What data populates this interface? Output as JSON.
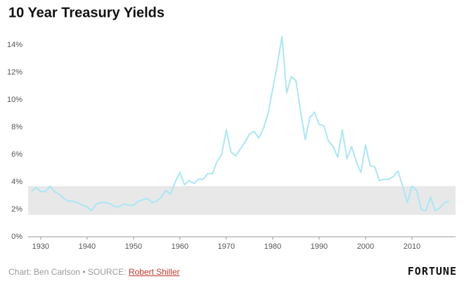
{
  "chart_data": {
    "type": "line",
    "title": "10 Year Treasury Yields",
    "x": [
      1928,
      1929,
      1930,
      1931,
      1932,
      1933,
      1934,
      1935,
      1936,
      1937,
      1938,
      1939,
      1940,
      1941,
      1942,
      1943,
      1944,
      1945,
      1946,
      1947,
      1948,
      1949,
      1950,
      1951,
      1952,
      1953,
      1954,
      1955,
      1956,
      1957,
      1958,
      1959,
      1960,
      1961,
      1962,
      1963,
      1964,
      1965,
      1966,
      1967,
      1968,
      1969,
      1970,
      1971,
      1972,
      1973,
      1974,
      1975,
      1976,
      1977,
      1978,
      1979,
      1980,
      1981,
      1982,
      1983,
      1984,
      1985,
      1986,
      1987,
      1988,
      1989,
      1990,
      1991,
      1992,
      1993,
      1994,
      1995,
      1996,
      1997,
      1998,
      1999,
      2000,
      2001,
      2002,
      2003,
      2004,
      2005,
      2006,
      2007,
      2008,
      2009,
      2010,
      2011,
      2012,
      2013,
      2014,
      2015,
      2016,
      2017,
      2018
    ],
    "series": [
      {
        "name": "10 Year Treasury Yield",
        "color": "#a9e7f6",
        "values": [
          3.3,
          3.6,
          3.3,
          3.3,
          3.7,
          3.3,
          3.1,
          2.8,
          2.6,
          2.6,
          2.5,
          2.3,
          2.2,
          1.9,
          2.4,
          2.5,
          2.5,
          2.4,
          2.2,
          2.2,
          2.4,
          2.3,
          2.3,
          2.6,
          2.7,
          2.8,
          2.5,
          2.6,
          2.9,
          3.4,
          3.1,
          4.0,
          4.7,
          3.8,
          4.1,
          3.9,
          4.2,
          4.2,
          4.6,
          4.6,
          5.5,
          6.0,
          7.8,
          6.2,
          5.9,
          6.4,
          6.9,
          7.5,
          7.7,
          7.2,
          7.9,
          9.0,
          10.8,
          12.6,
          14.6,
          10.5,
          11.7,
          11.4,
          9.2,
          7.1,
          8.7,
          9.1,
          8.2,
          8.1,
          7.0,
          6.6,
          5.8,
          7.8,
          5.7,
          6.6,
          5.5,
          4.7,
          6.7,
          5.2,
          5.1,
          4.1,
          4.2,
          4.2,
          4.4,
          4.8,
          3.7,
          2.5,
          3.7,
          3.4,
          2.0,
          1.9,
          2.9,
          1.9,
          2.1,
          2.5,
          2.6
        ]
      }
    ],
    "shaded_range": [
      1.6,
      3.7
    ],
    "shade_color": "#e8e8e8",
    "xlim": [
      1927.3,
      2019.4
    ],
    "xticks": [
      1930,
      1940,
      1950,
      1960,
      1970,
      1980,
      1990,
      2000,
      2010
    ],
    "ylim": [
      0,
      15
    ],
    "yticks": [
      {
        "value": 0,
        "label": "0%"
      },
      {
        "value": 2,
        "label": "2%"
      },
      {
        "value": 4,
        "label": "4%"
      },
      {
        "value": 6,
        "label": "6%"
      },
      {
        "value": 8,
        "label": "8%"
      },
      {
        "value": 10,
        "label": "10%"
      },
      {
        "value": 12,
        "label": "12%"
      },
      {
        "value": 14,
        "label": "14%"
      }
    ]
  },
  "footer": {
    "credit": "Chart: Ben Carlson • SOURCE: ",
    "source": "Robert Shiller",
    "brand": "FORTUNE"
  }
}
